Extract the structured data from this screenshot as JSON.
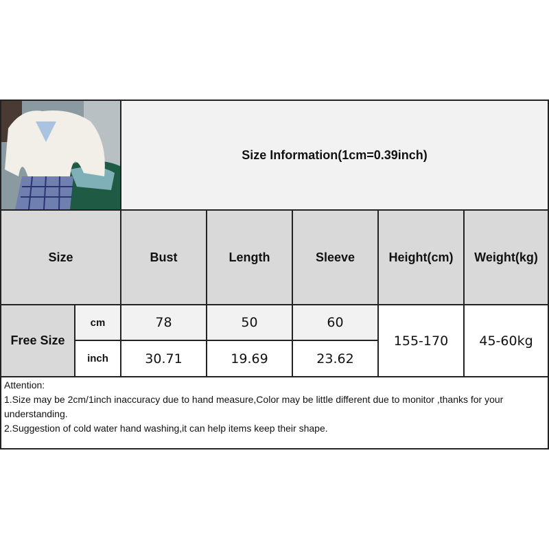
{
  "title": "Size Information(1cm=0.39inch)",
  "photo": {
    "alt_subject": "model-photo"
  },
  "table": {
    "headers": [
      "Size",
      "Bust",
      "Length",
      "Sleeve",
      "Height(cm)",
      "Weight(kg)"
    ],
    "size_label": "Free Size",
    "rows": [
      {
        "unit": "cm",
        "bust": "78",
        "length": "50",
        "sleeve": "60"
      },
      {
        "unit": "inch",
        "bust": "30.71",
        "length": "19.69",
        "sleeve": "23.62"
      }
    ],
    "height": "155-170",
    "weight": "45-60kg"
  },
  "attention": {
    "heading": "Attention:",
    "lines": [
      "1.Size may be 2cm/1inch inaccuracy due to hand measure,Color may be little different due to monitor ,thanks for your understanding.",
      "2.Suggestion of cold water hand washing,it can help items keep their shape."
    ]
  }
}
